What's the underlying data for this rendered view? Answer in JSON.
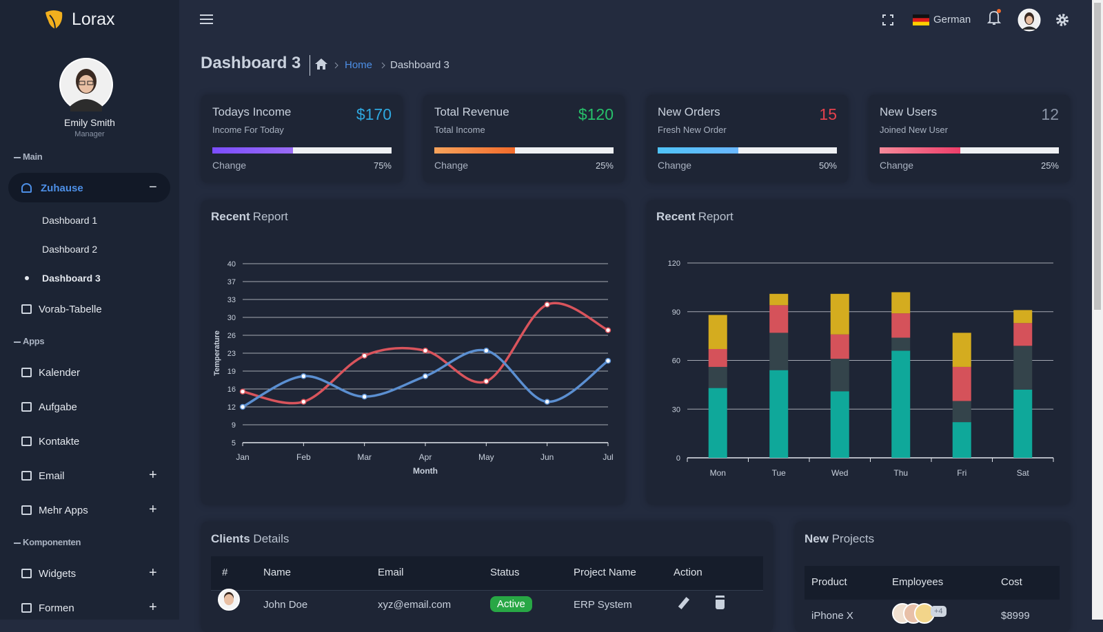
{
  "sidebar": {
    "brand": "Lorax",
    "user": {
      "name": "Emily Smith",
      "role": "Manager"
    },
    "sections": [
      {
        "title": "Main",
        "items": [
          {
            "label": "Zuhause",
            "active": true,
            "toggle": "−",
            "children": [
              "Dashboard 1",
              "Dashboard 2",
              "Dashboard 3"
            ]
          },
          {
            "label": "Vorab-Tabelle"
          }
        ]
      },
      {
        "title": "Apps",
        "items": [
          {
            "label": "Kalender"
          },
          {
            "label": "Aufgabe"
          },
          {
            "label": "Kontakte"
          },
          {
            "label": "Email",
            "toggle": "+"
          },
          {
            "label": "Mehr Apps",
            "toggle": "+"
          }
        ]
      },
      {
        "title": "Komponenten",
        "items": [
          {
            "label": "Widgets",
            "toggle": "+"
          },
          {
            "label": "Formen",
            "toggle": "+"
          }
        ]
      }
    ]
  },
  "topbar": {
    "language": "German"
  },
  "page": {
    "title": "Dashboard 3",
    "breadcrumb": [
      "Home",
      "Dashboard 3"
    ]
  },
  "stats": [
    {
      "title": "Todays Income",
      "value": "$170",
      "value_color": "#2fa8e0",
      "subtitle": "Income For Today",
      "change": "Change",
      "percent_label": "75%",
      "bar_colors": [
        "#7b4dff",
        "#9a6cf5"
      ]
    },
    {
      "title": "Total Revenue",
      "value": "$120",
      "value_color": "#27c06a",
      "subtitle": "Total Income",
      "change": "Change",
      "percent_label": "25%",
      "bar_colors": [
        "#f7a35c",
        "#f26b2b"
      ]
    },
    {
      "title": "New Orders",
      "value": "15",
      "value_color": "#e6424d",
      "subtitle": "Fresh New Order",
      "change": "Change",
      "percent_label": "50%",
      "bar_colors": [
        "#4fc3f7",
        "#6ab7ff"
      ]
    },
    {
      "title": "New Users",
      "value": "12",
      "value_color": "#8a94a6",
      "subtitle": "Joined New User",
      "change": "Change",
      "percent_label": "25%",
      "bar_colors": [
        "#f58a9a",
        "#ee3e6a"
      ]
    }
  ],
  "chart_data": [
    {
      "type": "line",
      "title_strong": "Recent",
      "title": "Report",
      "x_label": "Month",
      "y_label": "Temperature",
      "categories": [
        "Jan",
        "Feb",
        "Mar",
        "Apr",
        "May",
        "Jun",
        "Jul"
      ],
      "series": [
        {
          "color": "#d9545c",
          "values": [
            15,
            13,
            22,
            23,
            17,
            32,
            27
          ]
        },
        {
          "color": "#5b8fd1",
          "values": [
            12,
            18,
            14,
            18,
            23,
            13,
            21
          ]
        }
      ],
      "ylim": [
        5,
        40
      ],
      "yticks": [
        5,
        {
          "value": 8.5,
          "label": "9"
        },
        12,
        {
          "value": 15.5,
          "label": "16"
        },
        19,
        {
          "value": 22.5,
          "label": "23"
        },
        26,
        {
          "value": 29.5,
          "label": "30"
        },
        33,
        {
          "value": 36.5,
          "label": "37"
        },
        40
      ],
      "grid": true
    },
    {
      "type": "stacked_bar",
      "title_strong": "Recent",
      "title": "Report",
      "categories": [
        "Mon",
        "Tue",
        "Wed",
        "Thu",
        "Fri",
        "Sat"
      ],
      "series": [
        {
          "color": "#0fa89a",
          "values": [
            43,
            54,
            41,
            66,
            22,
            42
          ]
        },
        {
          "color": "#34444b",
          "values": [
            13,
            23,
            20,
            8,
            13,
            27
          ]
        },
        {
          "color": "#d5525a",
          "values": [
            11,
            17,
            15,
            15,
            21,
            14
          ]
        },
        {
          "color": "#d4ac1f",
          "values": [
            21,
            7,
            25,
            13,
            21,
            8
          ]
        }
      ],
      "ylim": [
        0,
        120
      ],
      "yticks": [
        0,
        30,
        60,
        90,
        120
      ],
      "grid": true
    }
  ],
  "clients": {
    "title_strong": "Clients",
    "title": "Details",
    "headers": [
      "#",
      "Name",
      "Email",
      "Status",
      "Project Name",
      "Action"
    ],
    "rows": [
      {
        "name": "John Doe",
        "email": "xyz@email.com",
        "status": "Active",
        "project": "ERP System"
      }
    ]
  },
  "projects": {
    "title_strong": "New",
    "title": "Projects",
    "headers": [
      "Product",
      "Employees",
      "Cost"
    ],
    "rows": [
      {
        "product": "iPhone X",
        "extra": "+4",
        "cost": "$8999"
      }
    ]
  }
}
